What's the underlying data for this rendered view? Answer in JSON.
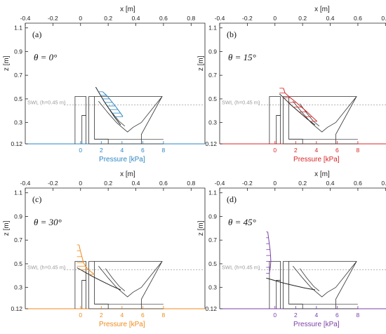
{
  "figure": {
    "shared_axes": {
      "x_top": {
        "label": "x  [m]",
        "range": [
          -0.4,
          0.9
        ],
        "ticks": [
          -0.4,
          -0.2,
          0,
          0.2,
          0.4,
          0.6,
          0.8
        ],
        "tick_labels": [
          "-0.4",
          "-0.2",
          "0",
          "0.2",
          "0.4",
          "0.6",
          "0.8"
        ]
      },
      "y_left": {
        "label": "z [m]",
        "range": [
          0.12,
          1.14
        ],
        "ticks": [
          0.12,
          0.3,
          0.5,
          0.7,
          0.9,
          1.1
        ],
        "tick_labels": [
          "0.12",
          "0.3",
          "0.5",
          "0.7",
          "0.9",
          "1.1"
        ]
      },
      "x_bottom": {
        "label": "Pressure [kPa]",
        "range": [
          0,
          8
        ],
        "ticks": [
          0,
          2,
          4,
          6,
          8
        ],
        "tick_labels": [
          "0",
          "2",
          "4",
          "6",
          "8"
        ]
      },
      "swl": {
        "label": "SWL (h=0.45 m)",
        "z": 0.45
      }
    },
    "panels": [
      {
        "tag": "(a)",
        "theta_label": "θ = 0°",
        "theta_deg": 0,
        "color": "#2e86c1"
      },
      {
        "tag": "(b)",
        "theta_label": "θ = 15°",
        "theta_deg": 15,
        "color": "#d62728"
      },
      {
        "tag": "(c)",
        "theta_label": "θ = 30°",
        "theta_deg": 30,
        "color": "#f08a1c"
      },
      {
        "tag": "(d)",
        "theta_label": "θ = 45°",
        "theta_deg": 45,
        "color": "#7b3fa8"
      }
    ]
  },
  "chart_data": [
    {
      "type": "line",
      "title": "",
      "annotation": "θ = 0°",
      "xlabel": "x  [m]",
      "ylabel": "z [m]",
      "xlim": [
        -0.4,
        0.9
      ],
      "ylim": [
        0.12,
        1.14
      ],
      "secondary_x": {
        "label": "Pressure [kPa]",
        "lim": [
          0,
          8
        ]
      },
      "series": [
        {
          "name": "",
          "z": [
            0.56,
            0.53,
            0.5,
            0.47,
            0.44,
            0.41,
            0.38,
            0.35
          ],
          "pressure_kPa": [
            1.6,
            2.3,
            2.7,
            2.9,
            3.1,
            3.2,
            3.3,
            3.3
          ]
        }
      ]
    },
    {
      "type": "line",
      "title": "",
      "annotation": "θ = 15°",
      "xlabel": "x  [m]",
      "ylabel": "z [m]",
      "xlim": [
        -0.4,
        0.9
      ],
      "ylim": [
        0.12,
        1.14
      ],
      "secondary_x": {
        "label": "Pressure [kPa]",
        "lim": [
          0,
          8
        ]
      },
      "series": [
        {
          "name": "",
          "z": [
            0.59,
            0.55,
            0.51,
            0.47,
            0.43,
            0.39,
            0.35,
            0.31
          ],
          "pressure_kPa": [
            1.5,
            2.1,
            2.6,
            3.0,
            3.1,
            3.1,
            2.9,
            2.6
          ]
        }
      ]
    },
    {
      "type": "line",
      "title": "",
      "annotation": "θ = 30°",
      "xlabel": "x  [m]",
      "ylabel": "z [m]",
      "xlim": [
        -0.4,
        0.9
      ],
      "ylim": [
        0.12,
        1.14
      ],
      "secondary_x": {
        "label": "Pressure [kPa]",
        "lim": [
          0,
          8
        ]
      },
      "series": [
        {
          "name": "",
          "z": [
            0.66,
            0.61,
            0.56,
            0.51,
            0.48,
            0.45,
            0.41
          ],
          "pressure_kPa": [
            0.8,
            1.3,
            1.9,
            2.5,
            3.3,
            3.0,
            2.1
          ]
        }
      ]
    },
    {
      "type": "line",
      "title": "",
      "annotation": "θ = 45°",
      "xlabel": "x  [m]",
      "ylabel": "z [m]",
      "xlim": [
        -0.4,
        0.9
      ],
      "ylim": [
        0.12,
        1.14
      ],
      "secondary_x": {
        "label": "Pressure [kPa]",
        "lim": [
          0,
          8
        ]
      },
      "series": [
        {
          "name": "",
          "z": [
            0.77,
            0.72,
            0.67,
            0.62,
            0.57,
            0.52,
            0.47,
            0.42
          ],
          "pressure_kPa": [
            0.6,
            0.9,
            1.2,
            1.5,
            1.7,
            1.8,
            1.6,
            1.2
          ]
        }
      ]
    }
  ]
}
